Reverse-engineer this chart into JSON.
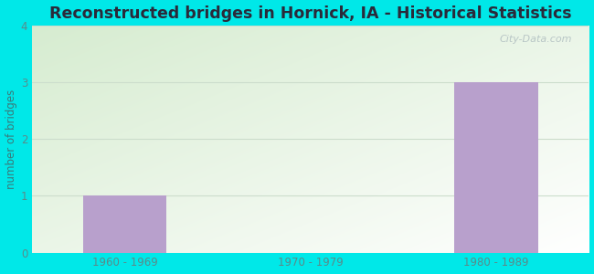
{
  "title": "Reconstructed bridges in Hornick, IA - Historical Statistics",
  "categories": [
    "1960 - 1969",
    "1970 - 1979",
    "1980 - 1989"
  ],
  "values": [
    1,
    0,
    3
  ],
  "bar_color": "#b8a0cc",
  "ylabel": "number of bridges",
  "ylim": [
    0,
    4
  ],
  "yticks": [
    0,
    1,
    2,
    3,
    4
  ],
  "background_outer": "#00e8e8",
  "background_inner_topleft": "#d6ecd0",
  "background_inner_bottomright": "#ffffff",
  "grid_color": "#ccddcc",
  "title_color": "#2a2a3a",
  "axis_label_color": "#3a7a7a",
  "tick_label_color": "#5a8a8a",
  "title_fontsize": 12.5,
  "label_fontsize": 8.5,
  "tick_fontsize": 8.5,
  "watermark": "City-Data.com"
}
